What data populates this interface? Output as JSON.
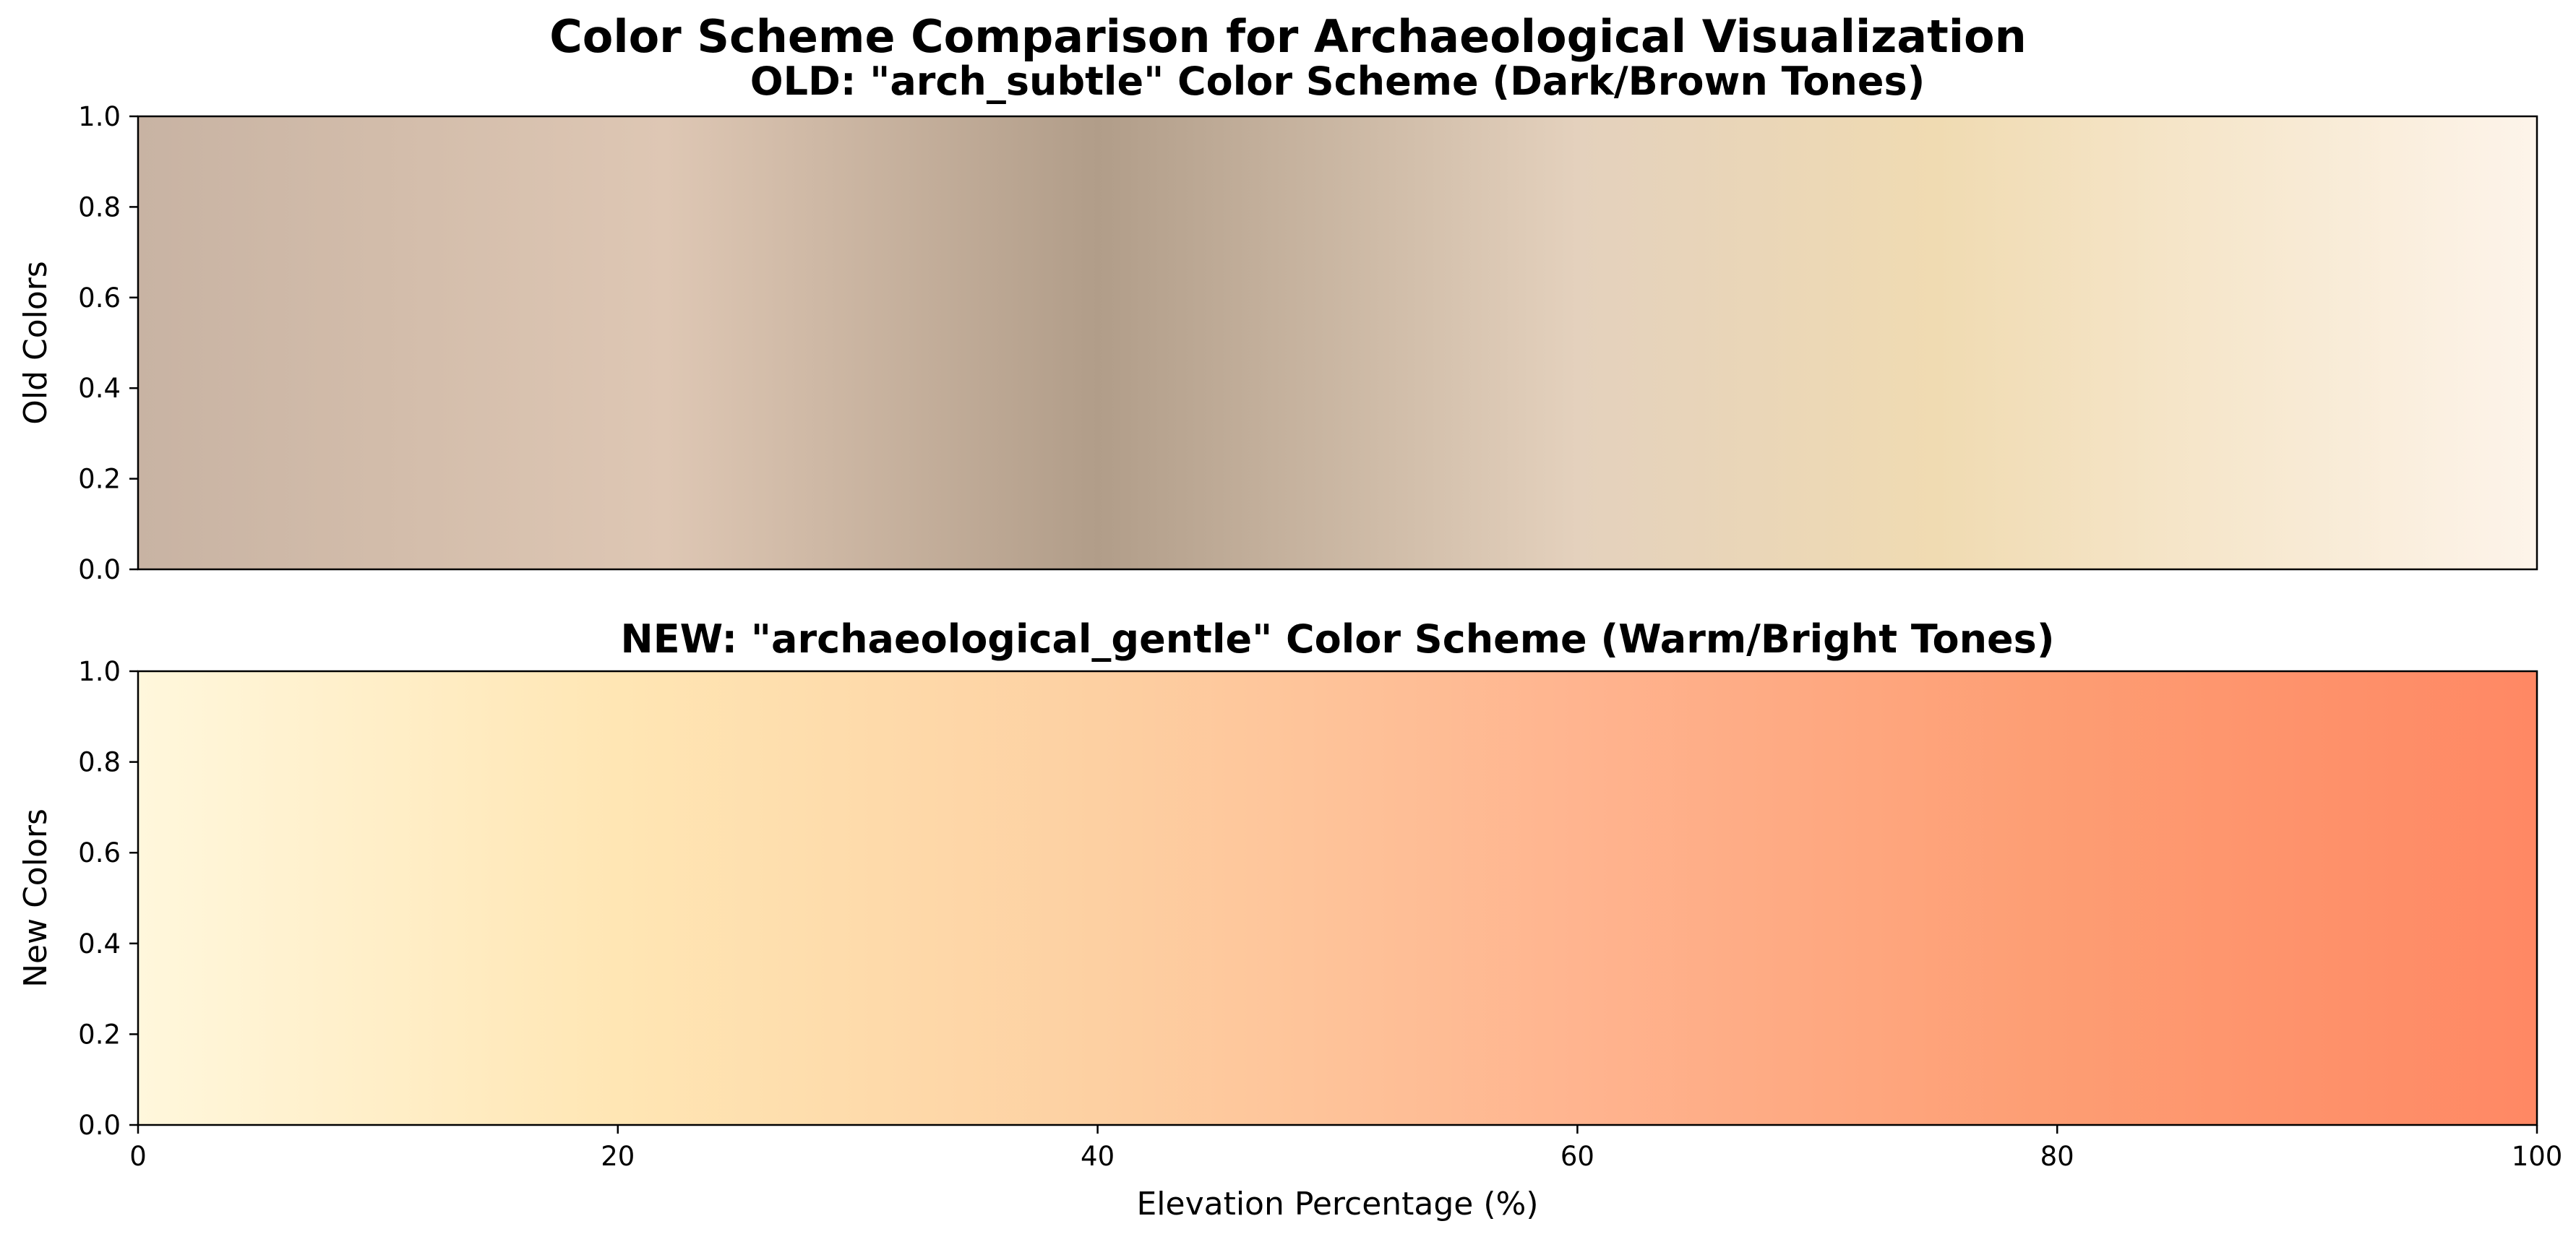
{
  "figure": {
    "suptitle": "Color Scheme Comparison for Archaeological Visualization"
  },
  "chart_data": [
    {
      "type": "heatmap",
      "title": "OLD: \"arch_subtle\" Color Scheme (Dark/Brown Tones)",
      "xlabel": "",
      "ylabel": "Old Colors",
      "xlim": [
        0,
        100
      ],
      "ylim": [
        0,
        1
      ],
      "x_ticks": [],
      "y_ticks": [
        0.0,
        0.2,
        0.4,
        0.6,
        0.8,
        1.0
      ],
      "y_tick_labels": [
        "0.0",
        "0.2",
        "0.4",
        "0.6",
        "0.8",
        "1.0"
      ],
      "grid": false,
      "colormap_stops": [
        {
          "x": 0,
          "color": "#c8b3a3"
        },
        {
          "x": 10,
          "color": "#d2bcaa"
        },
        {
          "x": 22,
          "color": "#dec7b4"
        },
        {
          "x": 40,
          "color": "#b19d89"
        },
        {
          "x": 60,
          "color": "#e4d1bd"
        },
        {
          "x": 75,
          "color": "#f0dbb2"
        },
        {
          "x": 100,
          "color": "#fdf4ea"
        }
      ]
    },
    {
      "type": "heatmap",
      "title": "NEW: \"archaeological_gentle\" Color Scheme (Warm/Bright Tones)",
      "xlabel": "Elevation Percentage (%)",
      "ylabel": "New Colors",
      "xlim": [
        0,
        100
      ],
      "ylim": [
        0,
        1
      ],
      "x_ticks": [
        0,
        20,
        40,
        60,
        80,
        100
      ],
      "x_tick_labels": [
        "0",
        "20",
        "40",
        "60",
        "80",
        "100"
      ],
      "y_ticks": [
        0.0,
        0.2,
        0.4,
        0.6,
        0.8,
        1.0
      ],
      "y_tick_labels": [
        "0.0",
        "0.2",
        "0.4",
        "0.6",
        "0.8",
        "1.0"
      ],
      "grid": false,
      "colormap_stops": [
        {
          "x": 0,
          "color": "#fff7dc"
        },
        {
          "x": 20,
          "color": "#ffe6b4"
        },
        {
          "x": 40,
          "color": "#fdd0a2"
        },
        {
          "x": 60,
          "color": "#ffb48f"
        },
        {
          "x": 80,
          "color": "#fd9d73"
        },
        {
          "x": 100,
          "color": "#ff8864"
        }
      ]
    }
  ]
}
